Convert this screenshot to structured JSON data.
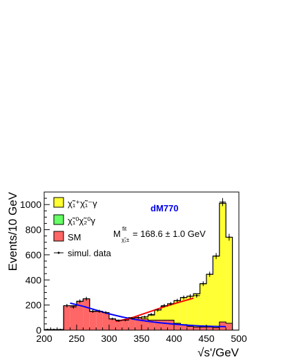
{
  "chart_data": {
    "type": "bar",
    "subtype": "stacked-histogram",
    "title": "",
    "xlabel": "√s'/GeV",
    "ylabel": "Events/10 GeV",
    "xlim": [
      200,
      500
    ],
    "ylim": [
      0,
      1100
    ],
    "xticks": [
      200,
      250,
      300,
      350,
      400,
      450,
      500
    ],
    "yticks": [
      0,
      200,
      400,
      600,
      800,
      1000
    ],
    "bin_width": 10,
    "bin_low_edges": [
      200,
      210,
      220,
      230,
      240,
      250,
      260,
      270,
      280,
      290,
      300,
      310,
      320,
      330,
      340,
      350,
      360,
      370,
      380,
      390,
      400,
      410,
      420,
      430,
      440,
      450,
      460,
      470,
      480,
      490
    ],
    "series": [
      {
        "name": "SM",
        "color": "#ff6666",
        "values": [
          5,
          5,
          5,
          195,
          195,
          230,
          250,
          150,
          150,
          140,
          90,
          80,
          80,
          100,
          100,
          90,
          80,
          80,
          80,
          80,
          55,
          45,
          30,
          25,
          25,
          25,
          20,
          65,
          55,
          0
        ]
      },
      {
        "name": "χ̃₁⁰χ̃₂⁰γ",
        "color": "#66ff66",
        "values": [
          0,
          0,
          0,
          0,
          0,
          0,
          0,
          0,
          0,
          0,
          0,
          0,
          0,
          0,
          0,
          0,
          0,
          0,
          0,
          0,
          0,
          0,
          0,
          0,
          0,
          0,
          0,
          0,
          0,
          0
        ]
      },
      {
        "name": "χ̃₁⁺χ̃₁⁻γ",
        "color": "#ffff33",
        "values": [
          0,
          0,
          0,
          0,
          0,
          0,
          0,
          0,
          0,
          0,
          0,
          0,
          0,
          0,
          0,
          15,
          40,
          80,
          110,
          130,
          180,
          215,
          240,
          265,
          345,
          420,
          570,
          945,
          685,
          0
        ]
      },
      {
        "name": "simul. data",
        "style": "points",
        "values": [
          5,
          5,
          5,
          195,
          185,
          230,
          250,
          150,
          150,
          140,
          90,
          75,
          80,
          95,
          100,
          105,
          125,
          160,
          195,
          210,
          235,
          260,
          270,
          275,
          370,
          445,
          590,
          1020,
          740,
          0
        ]
      }
    ],
    "fit_curves": [
      {
        "color": "#0000ff",
        "x": [
          240,
          260,
          280,
          300,
          320,
          340,
          360,
          380,
          400,
          420,
          440,
          460,
          480
        ],
        "y": [
          215,
          190,
          160,
          130,
          105,
          85,
          70,
          58,
          48,
          40,
          34,
          30,
          28
        ]
      },
      {
        "color": "#ff0000",
        "x": [
          310,
          330,
          350,
          370,
          390,
          410,
          430
        ],
        "y": [
          70,
          90,
          125,
          160,
          195,
          225,
          255
        ]
      }
    ],
    "annotation_title": "dM770",
    "annotation_fit_M": "M",
    "annotation_fit_sup": "fit",
    "annotation_fit_sub": "χ̃₁±",
    "annotation_fit_value": "= 168.6 ± 1.0 GeV",
    "legend": "top-left"
  }
}
